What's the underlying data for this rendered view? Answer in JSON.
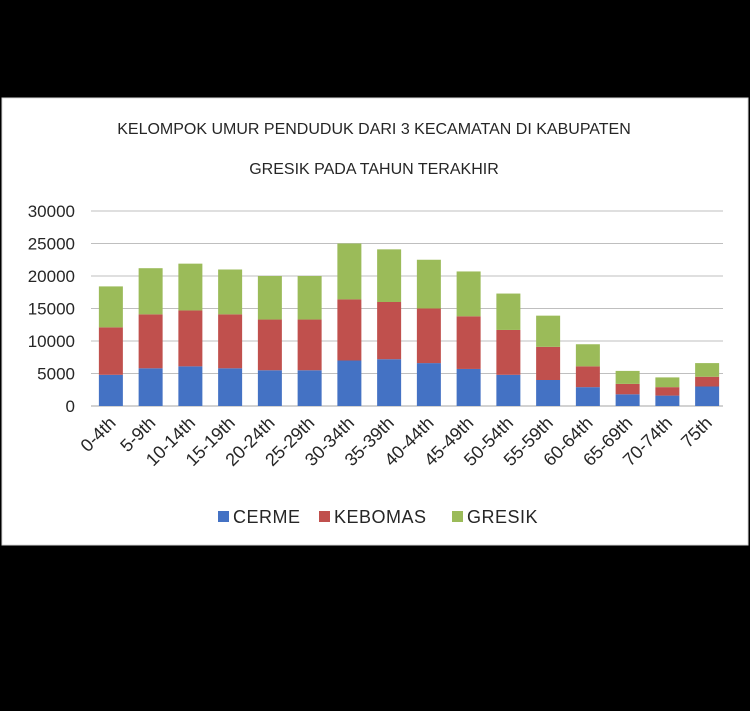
{
  "chart_data": {
    "type": "bar",
    "stacked": true,
    "title": {
      "line1": "KELOMPOK UMUR PENDUDUK DARI 3 KECAMATAN DI KABUPATEN",
      "line2": "GRESIK PADA TAHUN TERAKHIR"
    },
    "xlabel": "",
    "ylabel": "",
    "categories": [
      "0-4th",
      "5-9th",
      "10-14th",
      "15-19th",
      "20-24th",
      "25-29th",
      "30-34th",
      "35-39th",
      "40-44th",
      "45-49th",
      "50-54th",
      "55-59th",
      "60-64th",
      "65-69th",
      "70-74th",
      "75th"
    ],
    "series": [
      {
        "name": "CERME",
        "color": "#4472C4",
        "values": [
          4800,
          5800,
          6100,
          5800,
          5500,
          5500,
          7000,
          7200,
          6600,
          5700,
          4800,
          4000,
          2900,
          1800,
          1600,
          3000
        ]
      },
      {
        "name": "KEBOMAS",
        "color": "#C0504D",
        "values": [
          7300,
          8300,
          8600,
          8300,
          7800,
          7800,
          9400,
          8800,
          8400,
          8100,
          6900,
          5100,
          3200,
          1600,
          1300,
          1500
        ]
      },
      {
        "name": "GRESIK",
        "color": "#9BBB59",
        "values": [
          6300,
          7100,
          7200,
          6900,
          6700,
          6700,
          8600,
          8100,
          7500,
          6900,
          5600,
          4800,
          3400,
          2000,
          1500,
          2100
        ]
      }
    ],
    "ylim": [
      0,
      30000
    ],
    "yticks": [
      0,
      5000,
      10000,
      15000,
      20000,
      25000,
      30000
    ],
    "grid": true,
    "legend": "bottom"
  }
}
